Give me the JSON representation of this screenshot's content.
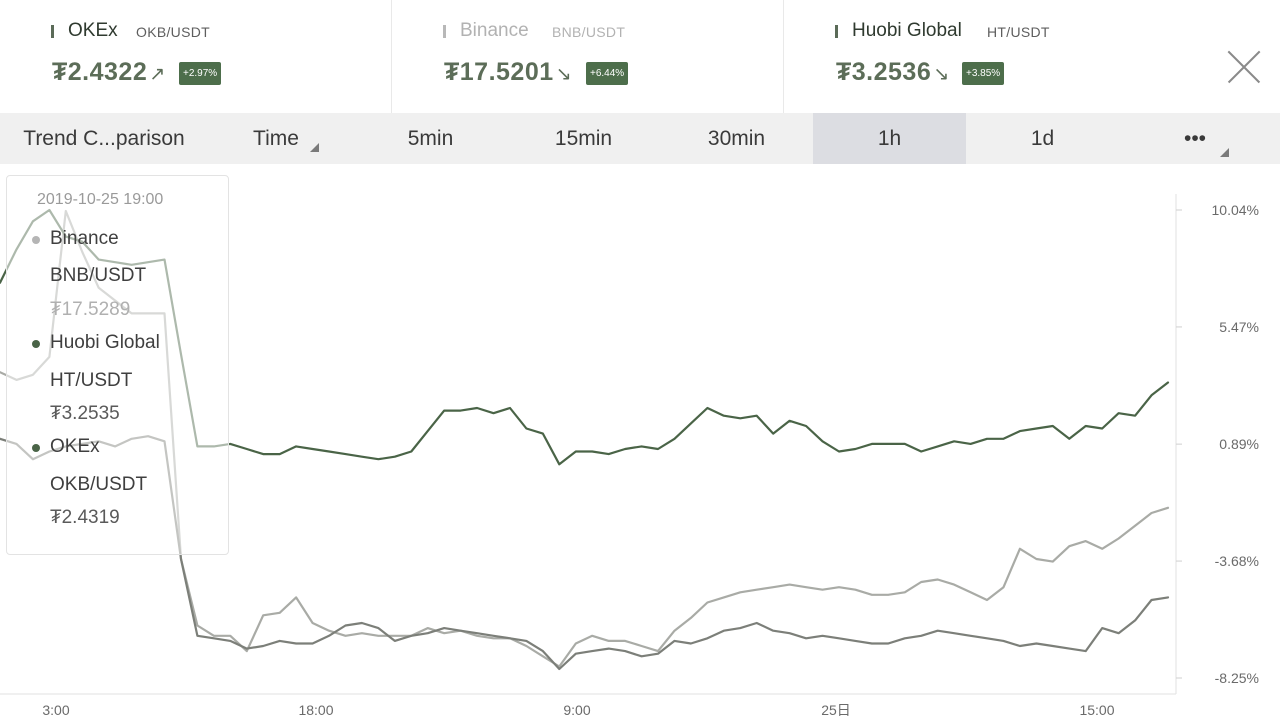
{
  "cards": [
    {
      "exchange": "OKEx",
      "pair": "OKB/USDT",
      "price": "₮2.4322",
      "arrow": "↗",
      "change": "+2.97%"
    },
    {
      "exchange": "Binance",
      "pair": "BNB/USDT",
      "price": "₮17.5201",
      "arrow": "↘",
      "change": "+6.44%"
    },
    {
      "exchange": "Huobi Global",
      "pair": "HT/USDT",
      "price": "₮3.2536",
      "arrow": "↘",
      "change": "+3.85%"
    }
  ],
  "toolbar": {
    "title": "Trend C...parison",
    "time": "Time",
    "intervals": [
      "5min",
      "15min",
      "30min",
      "1h",
      "1d"
    ],
    "active_interval": "1h",
    "more": "•••"
  },
  "tooltip": {
    "time": "2019-10-25 19:00",
    "entries": [
      {
        "exchange": "Binance",
        "pair": "BNB/USDT",
        "price": "₮17.5289"
      },
      {
        "exchange": "Huobi Global",
        "pair": "HT/USDT",
        "price": "₮3.2535"
      },
      {
        "exchange": "OKEx",
        "pair": "OKB/USDT",
        "price": "₮2.4319"
      }
    ]
  },
  "chart_data": {
    "type": "line",
    "x_ticks": [
      "3:00",
      "18:00",
      "9:00",
      "25日",
      "15:00"
    ],
    "y_ticks": [
      "10.04%",
      "5.47%",
      "0.89%",
      "-3.68%",
      "-8.25%"
    ],
    "ylim": [
      -8.25,
      10.04
    ],
    "series": [
      {
        "name": "Huobi Global",
        "color": "#4a6447",
        "values": [
          7.2,
          8.5,
          9.6,
          10.04,
          9.0,
          8.8,
          8.1,
          8.0,
          7.9,
          8.0,
          8.1,
          4.4,
          0.8,
          0.8,
          0.9,
          0.7,
          0.5,
          0.5,
          0.8,
          0.7,
          0.6,
          0.5,
          0.4,
          0.3,
          0.4,
          0.6,
          1.4,
          2.2,
          2.2,
          2.3,
          2.1,
          2.3,
          1.5,
          1.3,
          0.1,
          0.6,
          0.6,
          0.5,
          0.7,
          0.8,
          0.7,
          1.1,
          1.7,
          2.3,
          2.0,
          1.9,
          2.0,
          1.3,
          1.8,
          1.6,
          1.0,
          0.6,
          0.7,
          0.9,
          0.9,
          0.9,
          0.6,
          0.8,
          1.0,
          0.9,
          1.1,
          1.1,
          1.4,
          1.5,
          1.6,
          1.1,
          1.6,
          1.5,
          2.1,
          2.0,
          2.8,
          3.3
        ]
      },
      {
        "name": "Binance",
        "color": "#a9aba6",
        "values": [
          3.7,
          3.4,
          3.6,
          4.3,
          10.0,
          8.4,
          7.0,
          6.5,
          6.0,
          6.0,
          6.0,
          -3.6,
          -6.2,
          -6.6,
          -6.6,
          -7.2,
          -5.8,
          -5.7,
          -5.1,
          -6.1,
          -6.4,
          -6.6,
          -6.5,
          -6.6,
          -6.6,
          -6.6,
          -6.3,
          -6.5,
          -6.4,
          -6.6,
          -6.7,
          -6.7,
          -7.0,
          -7.4,
          -7.8,
          -6.9,
          -6.6,
          -6.8,
          -6.8,
          -7.0,
          -7.2,
          -6.4,
          -5.9,
          -5.3,
          -5.1,
          -4.9,
          -4.8,
          -4.7,
          -4.6,
          -4.7,
          -4.8,
          -4.7,
          -4.8,
          -5.0,
          -5.0,
          -4.9,
          -4.5,
          -4.4,
          -4.6,
          -4.9,
          -5.2,
          -4.7,
          -3.2,
          -3.6,
          -3.7,
          -3.1,
          -2.9,
          -3.2,
          -2.8,
          -2.3,
          -1.8,
          -1.6
        ]
      },
      {
        "name": "OKEx",
        "color": "#7c7f79",
        "values": [
          1.1,
          0.9,
          0.3,
          0.6,
          0.8,
          0.9,
          1.0,
          0.8,
          1.1,
          1.2,
          1.0,
          -3.6,
          -6.6,
          -6.7,
          -6.8,
          -7.1,
          -7.0,
          -6.8,
          -6.9,
          -6.9,
          -6.6,
          -6.2,
          -6.1,
          -6.3,
          -6.8,
          -6.6,
          -6.5,
          -6.3,
          -6.4,
          -6.5,
          -6.6,
          -6.7,
          -6.8,
          -7.2,
          -7.9,
          -7.3,
          -7.2,
          -7.1,
          -7.2,
          -7.4,
          -7.3,
          -6.8,
          -6.9,
          -6.7,
          -6.4,
          -6.3,
          -6.1,
          -6.4,
          -6.5,
          -6.7,
          -6.6,
          -6.7,
          -6.8,
          -6.9,
          -6.9,
          -6.7,
          -6.6,
          -6.4,
          -6.5,
          -6.6,
          -6.7,
          -6.8,
          -7.0,
          -6.9,
          -7.0,
          -7.1,
          -7.2,
          -6.3,
          -6.5,
          -6.0,
          -5.2,
          -5.1
        ]
      }
    ]
  }
}
